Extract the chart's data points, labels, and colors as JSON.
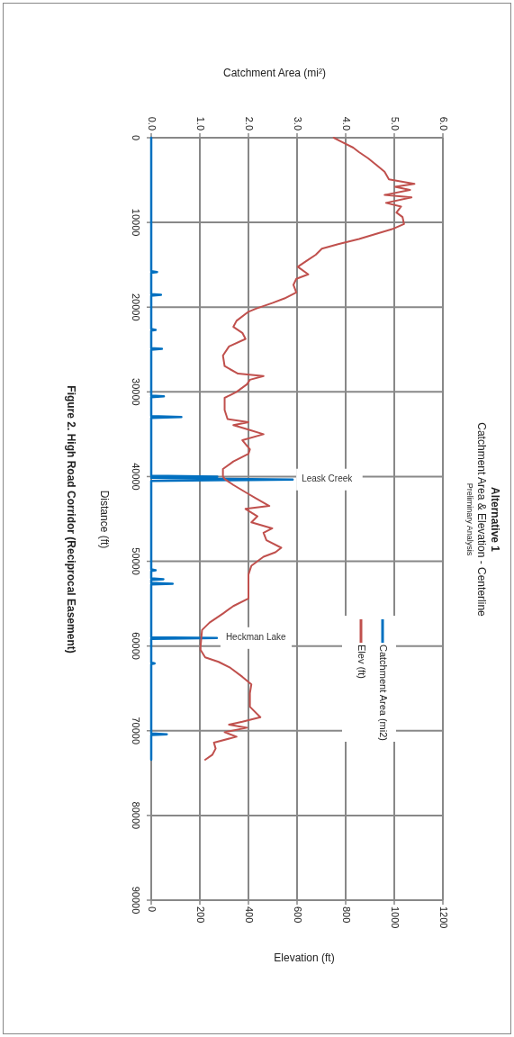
{
  "chart_data": {
    "type": "line",
    "title": "Alternative 1",
    "subtitle": "Catchment Area & Elevation - Centerline",
    "xlabel": "Elevation (ft)",
    "x2label": "Catchment Area (mi²)",
    "ylabel": "Distance (ft)",
    "annotations": [
      "Preliminary Analysis",
      "Figure 2. High Road Corridor (Reciprocal Easement)",
      {
        "text": "Leask Creek",
        "x": 582,
        "y": 40350
      },
      {
        "text": "Heckman Lake",
        "x": 270,
        "y": 59060
      }
    ],
    "ylim": [
      90000,
      0
    ],
    "yticks": [
      0,
      10000,
      20000,
      30000,
      40000,
      50000,
      60000,
      70000,
      80000,
      90000
    ],
    "x2lim": [
      0,
      6
    ],
    "x2ticks": [
      {
        "value": 0,
        "label": "0.0"
      },
      {
        "value": 1,
        "label": "1.0"
      },
      {
        "value": 2,
        "label": "2.0"
      },
      {
        "value": 3,
        "label": "3.0"
      },
      {
        "value": 4,
        "label": "4.0"
      },
      {
        "value": 5,
        "label": "5.0"
      },
      {
        "value": 6,
        "label": "6.0"
      }
    ],
    "xlim": [
      0,
      1200
    ],
    "xticks": [
      0,
      200,
      400,
      600,
      800,
      1000,
      1200
    ],
    "grid": true,
    "legend": "bottom right",
    "marker": "none",
    "line_style": "solid",
    "series": [
      {
        "name": "Catchment Area (mi2)",
        "color": "#0070c0",
        "type": "line",
        "axis": "x2",
        "x": [
          0,
          0,
          0.12,
          0,
          0,
          0.2,
          0,
          0,
          0.09,
          0,
          0,
          0.22,
          0,
          0,
          0.26,
          0,
          0,
          0.62,
          0,
          0,
          1.36,
          0,
          2.91,
          0,
          0,
          0.09,
          0,
          0,
          0.25,
          0,
          0,
          0.44,
          0,
          0,
          1.35,
          0,
          0,
          0.07,
          0,
          0,
          0.32,
          0,
          0
        ],
        "values": [
          0,
          15750,
          15850,
          15950,
          18450,
          18550,
          18650,
          22580,
          22680,
          22780,
          24830,
          24930,
          25030,
          30430,
          30530,
          30630,
          32860,
          32960,
          33060,
          39900,
          40000,
          40150,
          40350,
          40500,
          50950,
          51050,
          51150,
          52010,
          52110,
          52210,
          52540,
          52640,
          52740,
          58960,
          59060,
          59160,
          61950,
          62050,
          62150,
          70310,
          70410,
          70510,
          73420
        ]
      },
      {
        "name": "Elev (ft)",
        "color": "#c0504d",
        "type": "line",
        "x": [
          751,
          782,
          831,
          855,
          892,
          923,
          960,
          978,
          1083,
          1003,
          1065,
          960,
          1071,
          966,
          1028,
          1009,
          1034,
          1040,
          991,
          929,
          855,
          769,
          702,
          677,
          640,
          603,
          646,
          597,
          585,
          597,
          548,
          498,
          431,
          400,
          351,
          338,
          375,
          388,
          320,
          295,
          302,
          357,
          462,
          406,
          394,
          351,
          302,
          302,
          314,
          400,
          338,
          400,
          462,
          375,
          406,
          400,
          338,
          295,
          295,
          302,
          338,
          400,
          431,
          486,
          388,
          437,
          412,
          498,
          462,
          474,
          535,
          511,
          462,
          412,
          400,
          400,
          400,
          338,
          295,
          240,
          209,
          203,
          203,
          222,
          277,
          326,
          375,
          412,
          406,
          406,
          449,
          375,
          320,
          394,
          302,
          351,
          258,
          265,
          252,
          222
        ],
        "values": [
          0,
          460,
          1170,
          1700,
          2420,
          3130,
          4020,
          4910,
          5450,
          5800,
          6160,
          6760,
          7050,
          7690,
          8120,
          8830,
          9360,
          10180,
          10790,
          11320,
          11960,
          12570,
          13100,
          13810,
          14520,
          15240,
          16130,
          16660,
          17370,
          18260,
          18970,
          19510,
          20180,
          20540,
          21610,
          22320,
          23040,
          23750,
          24640,
          25710,
          26960,
          27850,
          28140,
          28570,
          29100,
          30000,
          30710,
          32140,
          33210,
          33570,
          33930,
          34460,
          35000,
          35710,
          36780,
          37320,
          38210,
          39100,
          39990,
          40280,
          40990,
          42050,
          42580,
          43460,
          43810,
          44690,
          45400,
          46110,
          46640,
          47520,
          48400,
          48930,
          49460,
          50520,
          51580,
          53340,
          54400,
          55280,
          56170,
          57230,
          58110,
          60050,
          60460,
          61340,
          61870,
          62580,
          63640,
          64520,
          65580,
          67170,
          68400,
          68930,
          69280,
          69640,
          70170,
          70700,
          71400,
          72110,
          72820,
          73420
        ]
      }
    ]
  }
}
